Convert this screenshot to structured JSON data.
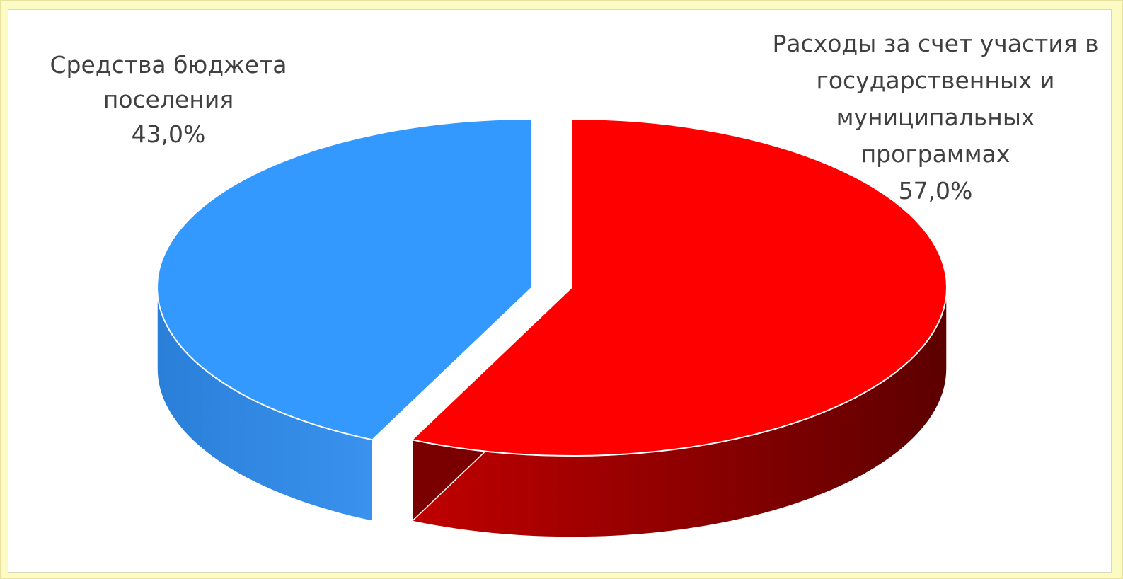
{
  "chart_data": {
    "type": "pie",
    "title": "",
    "legend": "none",
    "slices": [
      {
        "label_lines": [
          "Средства бюджета",
          "поселения"
        ],
        "value_text": "43,0%",
        "value": 43.0,
        "color": "#3399FF"
      },
      {
        "label_lines": [
          "Расходы за счет участия в",
          "государственных и",
          "муниципальных",
          "программах"
        ],
        "value_text": "57,0%",
        "value": 57.0,
        "color": "#FF0000"
      }
    ]
  }
}
